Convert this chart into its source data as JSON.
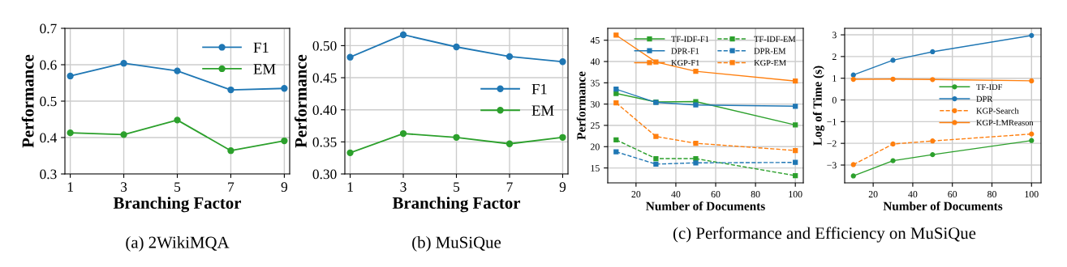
{
  "chart_data": [
    {
      "type": "line",
      "title": "(a) 2WikiMQA",
      "xlabel": "Branching Factor",
      "ylabel": "Performance",
      "x": [
        1,
        3,
        5,
        7,
        9
      ],
      "xlim": [
        0.8,
        9.2
      ],
      "xticks": [
        1,
        3,
        5,
        7,
        9
      ],
      "ylim": [
        0.3,
        0.7
      ],
      "yticks": [
        0.3,
        0.4,
        0.5,
        0.6,
        0.7
      ],
      "grid": true,
      "legend": "top right",
      "marker": "circle",
      "series": [
        {
          "name": "F1",
          "color": "#1f77b4",
          "values": [
            0.569,
            0.604,
            0.583,
            0.531,
            0.535
          ]
        },
        {
          "name": "EM",
          "color": "#2ca02c",
          "values": [
            0.413,
            0.408,
            0.448,
            0.364,
            0.391
          ]
        }
      ]
    },
    {
      "type": "line",
      "title": "(b) MuSiQue",
      "xlabel": "Branching Factor",
      "ylabel": "Performance",
      "x": [
        1,
        3,
        5,
        7,
        9
      ],
      "xlim": [
        0.8,
        9.2
      ],
      "xticks": [
        1,
        3,
        5,
        7,
        9
      ],
      "ylim": [
        0.3,
        0.527
      ],
      "yticks": [
        {
          "value": 0.3,
          "label": "0.30"
        },
        {
          "value": 0.35,
          "label": "0.35"
        },
        {
          "value": 0.4,
          "label": "0.40"
        },
        {
          "value": 0.45,
          "label": "0.45"
        },
        {
          "value": 0.5,
          "label": "0.50"
        }
      ],
      "grid": true,
      "legend": "right",
      "marker": "circle",
      "series": [
        {
          "name": "F1",
          "color": "#1f77b4",
          "values": [
            0.482,
            0.517,
            0.498,
            0.483,
            0.475
          ]
        },
        {
          "name": "EM",
          "color": "#2ca02c",
          "values": [
            0.333,
            0.363,
            0.357,
            0.347,
            0.357
          ]
        }
      ]
    },
    {
      "type": "line",
      "xlabel": "Number of Documents",
      "ylabel": "Performance",
      "annotations": [
        "(c) Performance and Efficiency on MuSiQue"
      ],
      "x": [
        10,
        30,
        50,
        100
      ],
      "xlim": [
        5.8,
        104
      ],
      "xticks": [
        20,
        40,
        60,
        80,
        100
      ],
      "ylim": [
        11.5,
        47.8
      ],
      "yticks": [
        15,
        20,
        25,
        30,
        35,
        40,
        45
      ],
      "grid": true,
      "legend": "top right",
      "marker": "square",
      "series": [
        {
          "name": "TF-IDF-F1",
          "color": "#2ca02c",
          "line_style": "solid",
          "values": [
            32.5,
            30.5,
            30.6,
            25.1
          ]
        },
        {
          "name": "DPR-F1",
          "color": "#1f77b4",
          "line_style": "solid",
          "values": [
            33.5,
            30.4,
            29.8,
            29.5
          ]
        },
        {
          "name": "KGP-F1",
          "color": "#ff7f0e",
          "line_style": "solid",
          "values": [
            46.2,
            39.9,
            37.7,
            35.4
          ]
        },
        {
          "name": "TF-IDF-EM",
          "color": "#2ca02c",
          "line_style": "dashed",
          "values": [
            21.6,
            17.2,
            17.2,
            13.2
          ]
        },
        {
          "name": "DPR-EM",
          "color": "#1f77b4",
          "line_style": "dashed",
          "values": [
            18.8,
            15.9,
            16.2,
            16.3
          ]
        },
        {
          "name": "KGP-EM",
          "color": "#ff7f0e",
          "line_style": "dashed",
          "values": [
            30.3,
            22.4,
            20.8,
            19.1
          ]
        }
      ]
    },
    {
      "type": "line",
      "xlabel": "Number of Documents",
      "ylabel": "Log of Time (s)",
      "x": [
        10,
        30,
        50,
        100
      ],
      "xlim": [
        5.6,
        104.8
      ],
      "xticks": [
        20,
        40,
        60,
        80,
        100
      ],
      "ylim": [
        -3.82,
        3.3
      ],
      "yticks": [
        {
          "value": -3,
          "label": "−3"
        },
        {
          "value": -2,
          "label": "−2"
        },
        {
          "value": -1,
          "label": "−1"
        },
        0,
        1,
        2,
        3
      ],
      "grid": true,
      "legend": "right",
      "marker": "circle",
      "series": [
        {
          "name": "TF-IDF",
          "color": "#2ca02c",
          "line_style": "solid",
          "values": [
            -3.5,
            -2.8,
            -2.52,
            -1.87
          ]
        },
        {
          "name": "DPR",
          "color": "#1f77b4",
          "line_style": "solid",
          "values": [
            1.15,
            1.83,
            2.22,
            2.97
          ]
        },
        {
          "name": "KGP-Search",
          "color": "#ff7f0e",
          "line_style": "dashed",
          "values": [
            -2.98,
            -2.03,
            -1.89,
            -1.57
          ]
        },
        {
          "name": "KGP-LMReason",
          "color": "#ff7f0e",
          "line_style": "solid",
          "values": [
            0.95,
            0.96,
            0.94,
            0.88
          ]
        }
      ]
    }
  ]
}
